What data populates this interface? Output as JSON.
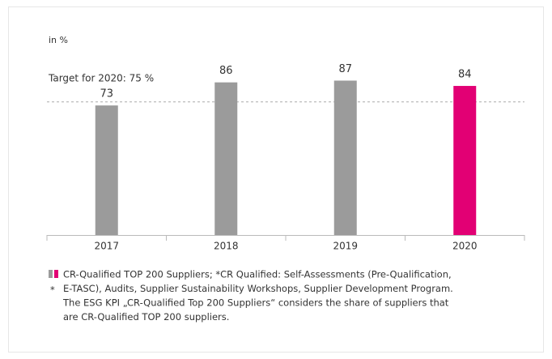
{
  "chart_data": {
    "type": "bar",
    "unit_label": "in %",
    "categories": [
      "2017",
      "2018",
      "2019",
      "2020"
    ],
    "values": [
      73,
      86,
      87,
      84
    ],
    "colors": [
      "#9b9b9b",
      "#9b9b9b",
      "#9b9b9b",
      "#e20074"
    ],
    "ylim": [
      0,
      100
    ],
    "target": {
      "value": 75,
      "label": "Target for 2020: 75 %"
    },
    "legend_lines": [
      "CR-Qualified TOP 200 Suppliers; *CR Qualified: Self-Assessments (Pre-Qualification,",
      "E-TASC), Audits, Supplier Sustainability Workshops, Supplier Development Program.",
      "The ESG KPI „CR-Qualified Top 200 Suppliers“ considers the share of suppliers that",
      "are CR-Qualified TOP 200 suppliers."
    ],
    "footnote_marker": "*"
  }
}
